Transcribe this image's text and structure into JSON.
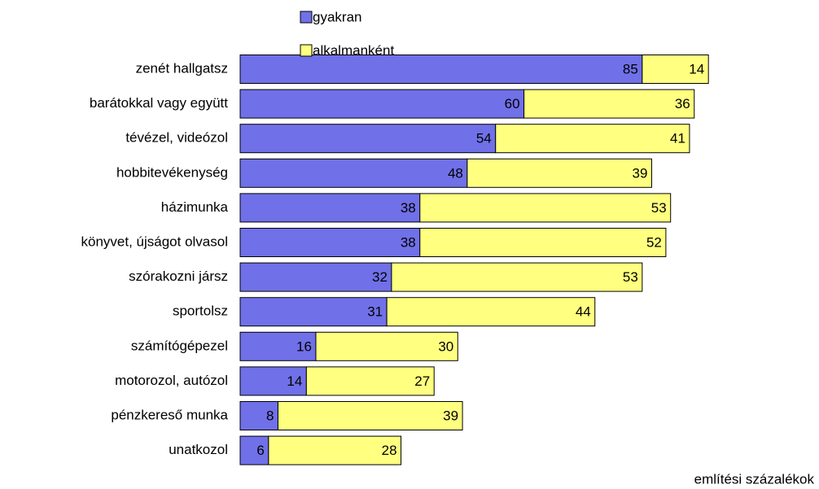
{
  "chart_data": {
    "type": "stacked-barh",
    "categories": [
      "zenét hallgatsz",
      "barátokkal vagy együtt",
      "tévézel, videózol",
      "hobbitevékenység",
      "házimunka",
      "könyvet, újságot olvasol",
      "szórakozni jársz",
      "sportolsz",
      "számítógépezel",
      "motorozol, autózol",
      "pénzkereső munka",
      "unatkozol"
    ],
    "series": [
      {
        "name": "gyakran",
        "color": "#7070e8",
        "values": [
          85,
          60,
          54,
          48,
          38,
          38,
          32,
          31,
          16,
          14,
          8,
          6
        ]
      },
      {
        "name": "alkalmanként",
        "color": "#ffff80",
        "values": [
          14,
          36,
          41,
          39,
          53,
          52,
          53,
          44,
          30,
          27,
          39,
          28
        ]
      }
    ],
    "x_label": "említési százalékok"
  }
}
